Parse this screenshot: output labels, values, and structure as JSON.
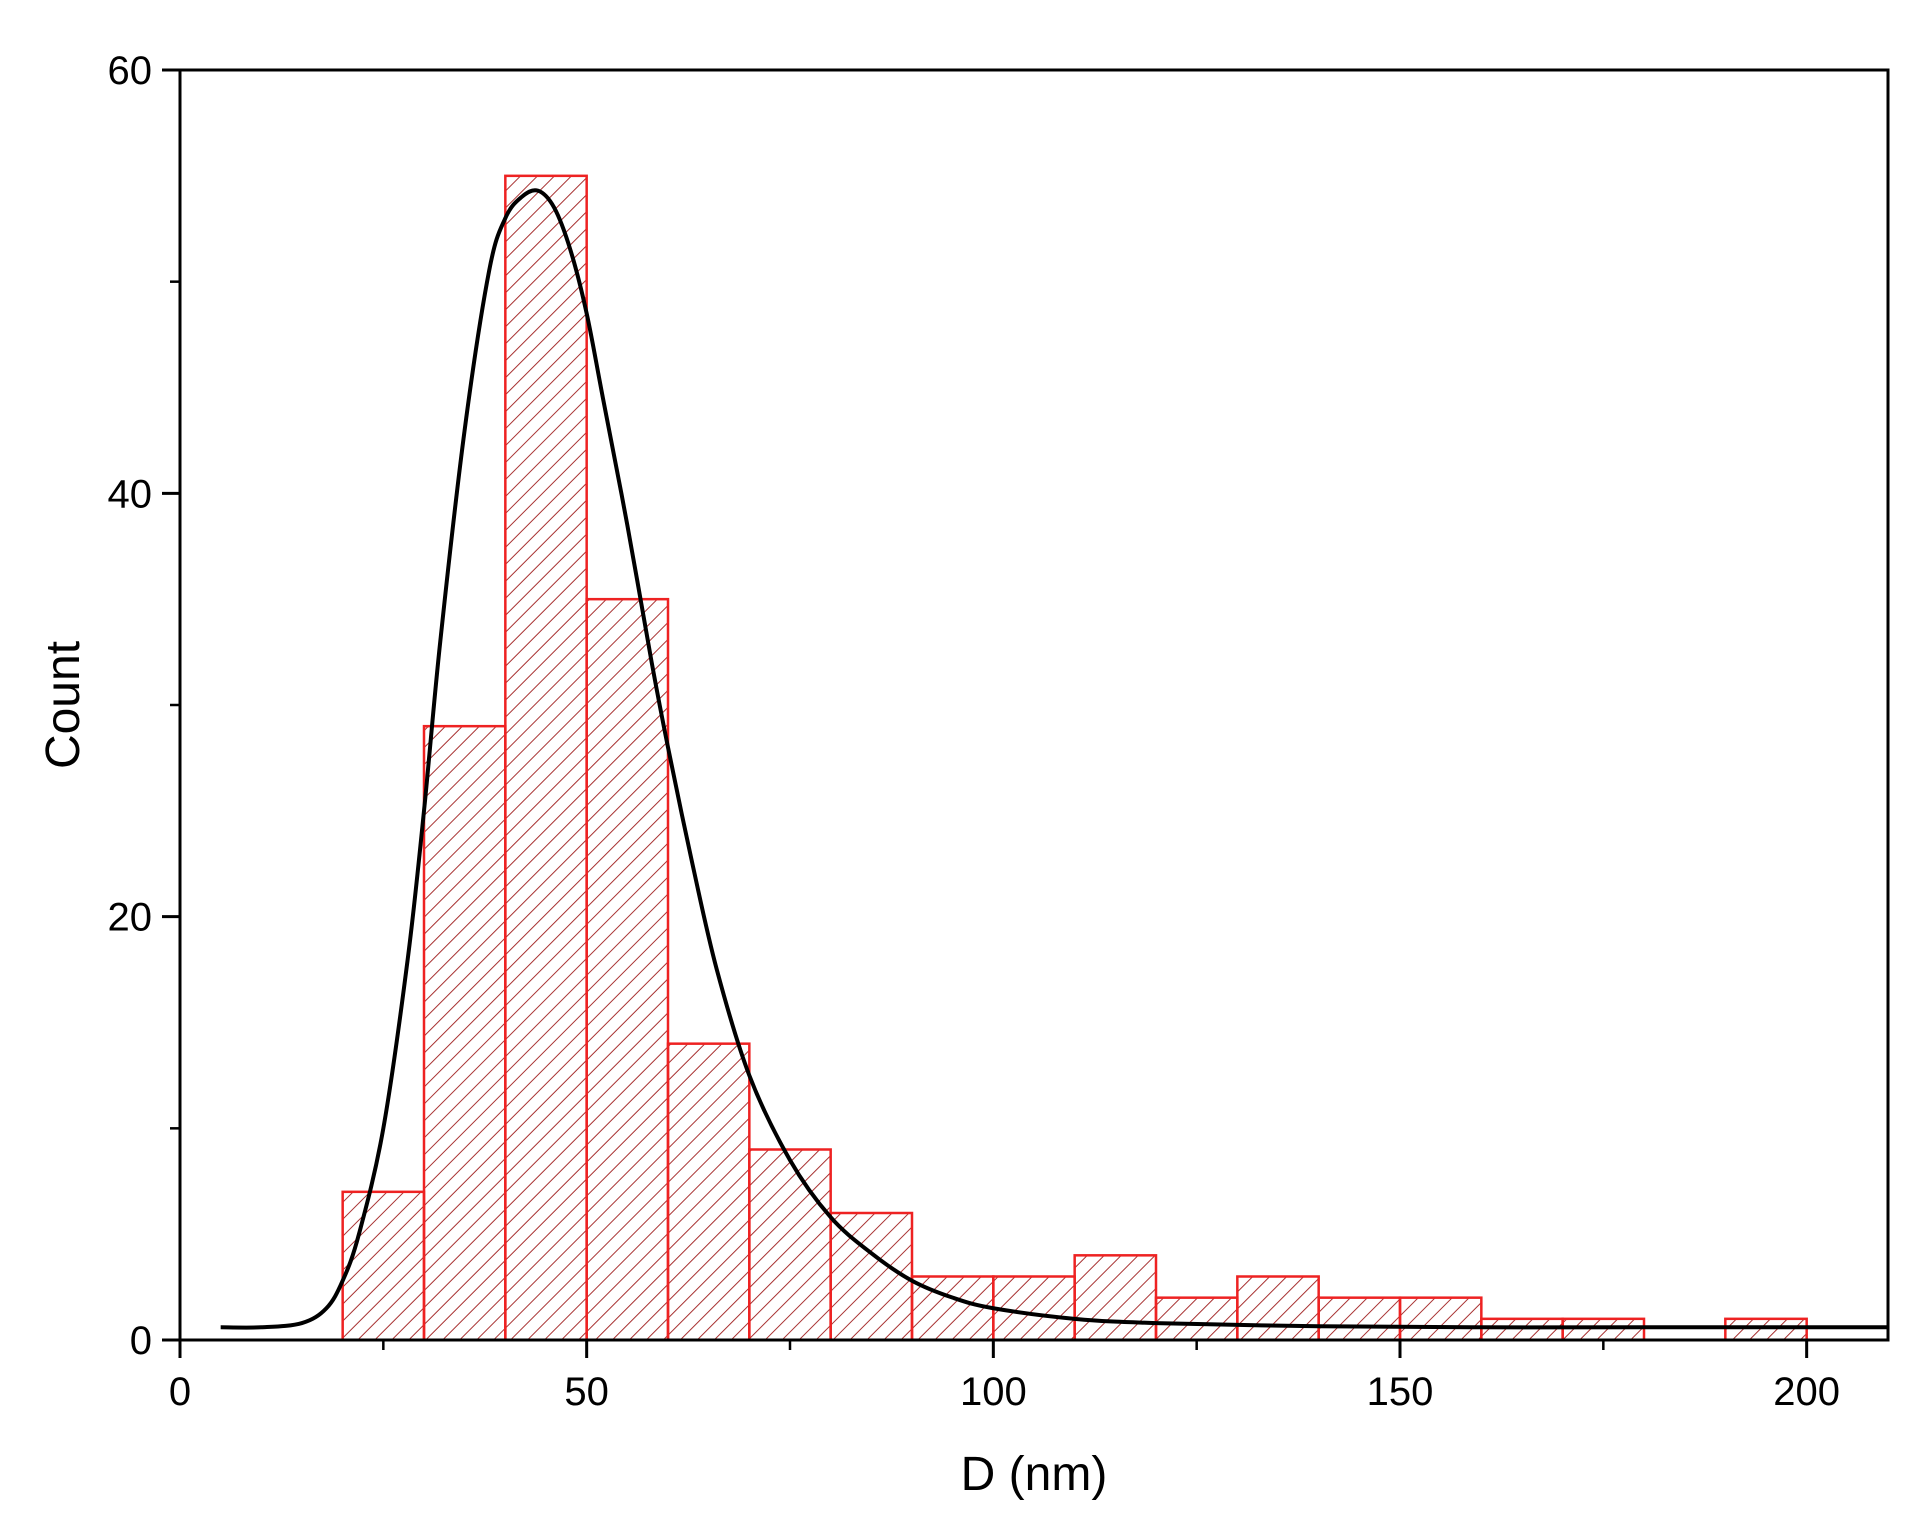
{
  "chart_data": {
    "type": "bar",
    "title": "",
    "xlabel": "D (nm)",
    "ylabel": "Count",
    "xlim": [
      0,
      210
    ],
    "ylim": [
      0,
      60
    ],
    "x_ticks": [
      0,
      50,
      100,
      150,
      200
    ],
    "x_minor_ticks": [
      25,
      75,
      125,
      175
    ],
    "y_ticks": [
      0,
      20,
      40,
      60
    ],
    "y_minor_ticks": [
      10,
      30,
      50
    ],
    "grid": false,
    "bins": [
      {
        "start": 20,
        "end": 30,
        "count": 7
      },
      {
        "start": 30,
        "end": 40,
        "count": 29
      },
      {
        "start": 40,
        "end": 50,
        "count": 55
      },
      {
        "start": 50,
        "end": 60,
        "count": 35
      },
      {
        "start": 60,
        "end": 70,
        "count": 14
      },
      {
        "start": 70,
        "end": 80,
        "count": 9
      },
      {
        "start": 80,
        "end": 90,
        "count": 6
      },
      {
        "start": 90,
        "end": 100,
        "count": 3
      },
      {
        "start": 100,
        "end": 110,
        "count": 3
      },
      {
        "start": 110,
        "end": 120,
        "count": 4
      },
      {
        "start": 120,
        "end": 130,
        "count": 2
      },
      {
        "start": 130,
        "end": 140,
        "count": 3
      },
      {
        "start": 140,
        "end": 150,
        "count": 2
      },
      {
        "start": 150,
        "end": 160,
        "count": 2
      },
      {
        "start": 160,
        "end": 170,
        "count": 1
      },
      {
        "start": 170,
        "end": 180,
        "count": 1
      },
      {
        "start": 190,
        "end": 200,
        "count": 1
      }
    ],
    "fit_curve": {
      "type": "lognormal",
      "x": [
        5,
        10,
        15,
        18,
        20,
        22,
        25,
        28,
        30,
        32,
        35,
        38,
        40,
        42,
        44,
        46,
        48,
        50,
        52,
        55,
        58,
        60,
        63,
        66,
        70,
        75,
        80,
        85,
        90,
        95,
        100,
        110,
        120,
        140,
        160,
        180,
        210
      ],
      "y": [
        0.6,
        0.6,
        0.8,
        1.5,
        2.8,
        5,
        10,
        18,
        25,
        33,
        43,
        50.5,
        53,
        54,
        54.3,
        53.5,
        51.5,
        48.5,
        44.5,
        38.5,
        32,
        28,
        22.5,
        17.5,
        12.5,
        8.5,
        5.8,
        4.1,
        2.8,
        2.0,
        1.5,
        1.0,
        0.8,
        0.65,
        0.6,
        0.6,
        0.6
      ]
    },
    "colors": {
      "bar_edge": "#ee2222",
      "bar_hatch": "#a83232",
      "fit_line": "#000000",
      "axis": "#000000"
    }
  }
}
